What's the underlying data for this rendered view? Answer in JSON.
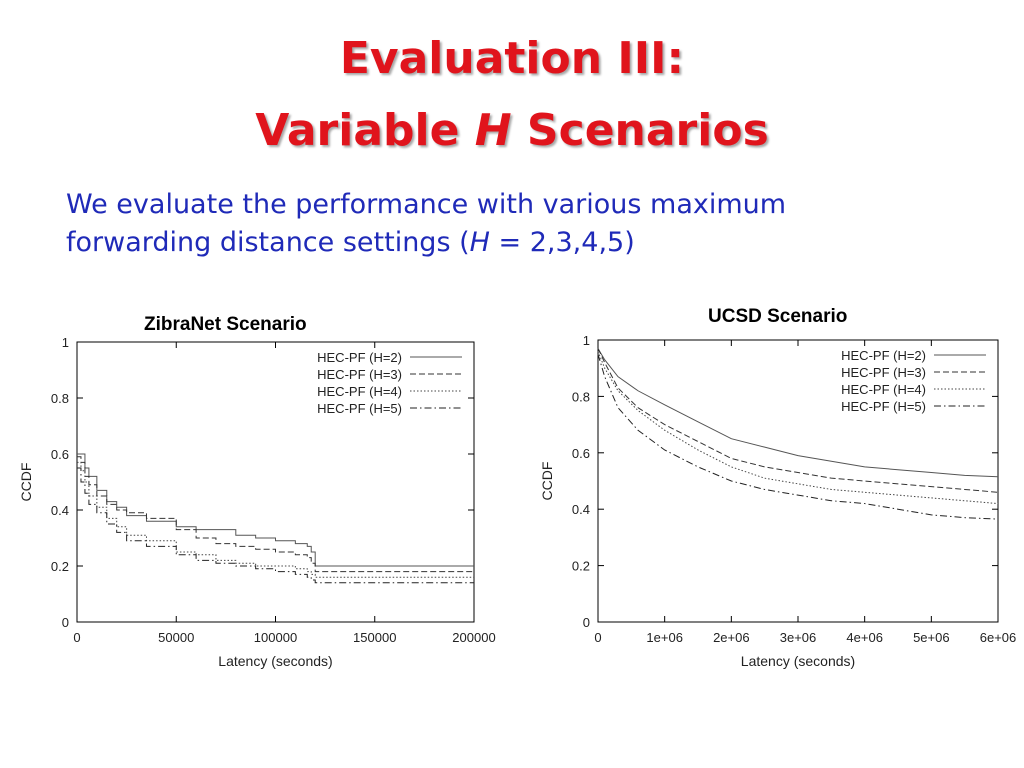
{
  "slide": {
    "title_line1": "Evaluation III:",
    "title_line2_pre": "Variable ",
    "title_line2_italic": "H",
    "title_line2_post": " Scenarios",
    "body_line1": "We evaluate the performance with various maximum",
    "body_line2_pre": "forwarding distance settings (",
    "body_line2_italic": "H",
    "body_line2_post": " = 2,3,4,5)"
  },
  "chart_data": [
    {
      "type": "line",
      "title": "ZibraNet Scenario",
      "xlabel": "Latency (seconds)",
      "ylabel": "CCDF",
      "xlim": [
        0,
        200000
      ],
      "ylim": [
        0,
        1
      ],
      "x_ticks": [
        0,
        50000,
        100000,
        150000,
        200000
      ],
      "x_tick_labels": [
        "0",
        "50000",
        "100000",
        "150000",
        "200000"
      ],
      "y_ticks": [
        0,
        0.2,
        0.4,
        0.6,
        0.8,
        1
      ],
      "y_tick_labels": [
        "0",
        "0.2",
        "0.4",
        "0.6",
        "0.8",
        "1"
      ],
      "grid": false,
      "step": true,
      "legend_position": "top-right",
      "series": [
        {
          "name": "HEC-PF (H=2)",
          "dash": "solid",
          "x": [
            0,
            2000,
            4000,
            6000,
            10000,
            15000,
            20000,
            25000,
            35000,
            50000,
            60000,
            70000,
            80000,
            90000,
            100000,
            110000,
            116000,
            118000,
            120000,
            200000
          ],
          "y": [
            0.6,
            0.6,
            0.55,
            0.52,
            0.47,
            0.43,
            0.41,
            0.38,
            0.36,
            0.34,
            0.33,
            0.33,
            0.31,
            0.3,
            0.29,
            0.28,
            0.27,
            0.25,
            0.2,
            0.2
          ]
        },
        {
          "name": "HEC-PF (H=3)",
          "dash": "dashed",
          "x": [
            0,
            2000,
            4000,
            6000,
            10000,
            15000,
            20000,
            25000,
            35000,
            50000,
            60000,
            70000,
            80000,
            90000,
            100000,
            110000,
            116000,
            118000,
            120000,
            200000
          ],
          "y": [
            0.59,
            0.57,
            0.52,
            0.49,
            0.45,
            0.42,
            0.4,
            0.39,
            0.37,
            0.33,
            0.3,
            0.28,
            0.27,
            0.26,
            0.25,
            0.24,
            0.23,
            0.21,
            0.18,
            0.18
          ]
        },
        {
          "name": "HEC-PF (H=4)",
          "dash": "dotted",
          "x": [
            0,
            2000,
            4000,
            6000,
            10000,
            15000,
            20000,
            25000,
            35000,
            50000,
            60000,
            70000,
            80000,
            90000,
            100000,
            110000,
            116000,
            118000,
            120000,
            200000
          ],
          "y": [
            0.57,
            0.54,
            0.5,
            0.45,
            0.41,
            0.37,
            0.34,
            0.31,
            0.29,
            0.25,
            0.24,
            0.22,
            0.21,
            0.2,
            0.2,
            0.19,
            0.18,
            0.17,
            0.16,
            0.16
          ]
        },
        {
          "name": "HEC-PF (H=5)",
          "dash": "dashdot",
          "x": [
            0,
            2000,
            4000,
            6000,
            10000,
            15000,
            20000,
            25000,
            35000,
            50000,
            60000,
            70000,
            80000,
            90000,
            100000,
            110000,
            116000,
            118000,
            120000,
            200000
          ],
          "y": [
            0.55,
            0.5,
            0.46,
            0.42,
            0.39,
            0.35,
            0.32,
            0.29,
            0.27,
            0.24,
            0.22,
            0.21,
            0.2,
            0.19,
            0.18,
            0.17,
            0.16,
            0.15,
            0.14,
            0.14
          ]
        }
      ]
    },
    {
      "type": "line",
      "title": "UCSD Scenario",
      "xlabel": "Latency (seconds)",
      "ylabel": "CCDF",
      "xlim": [
        0,
        6000000
      ],
      "ylim": [
        0,
        1
      ],
      "x_ticks": [
        0,
        1000000,
        2000000,
        3000000,
        4000000,
        5000000,
        6000000
      ],
      "x_tick_labels": [
        "0",
        "1e+06",
        "2e+06",
        "3e+06",
        "4e+06",
        "5e+06",
        "6e+06"
      ],
      "y_ticks": [
        0,
        0.2,
        0.4,
        0.6,
        0.8,
        1
      ],
      "y_tick_labels": [
        "0",
        "0.2",
        "0.4",
        "0.6",
        "0.8",
        "1"
      ],
      "grid": false,
      "step": false,
      "legend_position": "top-right",
      "series": [
        {
          "name": "HEC-PF (H=2)",
          "dash": "solid",
          "x": [
            0,
            100000,
            300000,
            600000,
            1000000,
            1500000,
            2000000,
            2500000,
            3000000,
            3500000,
            4000000,
            4500000,
            5000000,
            5500000,
            6000000
          ],
          "y": [
            0.97,
            0.93,
            0.87,
            0.82,
            0.77,
            0.71,
            0.65,
            0.62,
            0.59,
            0.57,
            0.55,
            0.54,
            0.53,
            0.52,
            0.515
          ]
        },
        {
          "name": "HEC-PF (H=3)",
          "dash": "dashed",
          "x": [
            0,
            100000,
            300000,
            600000,
            1000000,
            1500000,
            2000000,
            2500000,
            3000000,
            3500000,
            4000000,
            4500000,
            5000000,
            5500000,
            6000000
          ],
          "y": [
            0.97,
            0.92,
            0.83,
            0.76,
            0.7,
            0.64,
            0.58,
            0.55,
            0.53,
            0.51,
            0.5,
            0.49,
            0.48,
            0.47,
            0.46
          ]
        },
        {
          "name": "HEC-PF (H=4)",
          "dash": "dotted",
          "x": [
            0,
            100000,
            300000,
            600000,
            1000000,
            1500000,
            2000000,
            2500000,
            3000000,
            3500000,
            4000000,
            4500000,
            5000000,
            5500000,
            6000000
          ],
          "y": [
            0.96,
            0.9,
            0.82,
            0.75,
            0.68,
            0.61,
            0.55,
            0.51,
            0.49,
            0.47,
            0.46,
            0.45,
            0.44,
            0.43,
            0.42
          ]
        },
        {
          "name": "HEC-PF (H=5)",
          "dash": "dashdot",
          "x": [
            0,
            100000,
            300000,
            600000,
            1000000,
            1500000,
            2000000,
            2500000,
            3000000,
            3500000,
            4000000,
            4500000,
            5000000,
            5500000,
            6000000
          ],
          "y": [
            0.95,
            0.87,
            0.76,
            0.68,
            0.61,
            0.55,
            0.5,
            0.47,
            0.45,
            0.43,
            0.42,
            0.4,
            0.38,
            0.37,
            0.365
          ]
        }
      ]
    }
  ]
}
